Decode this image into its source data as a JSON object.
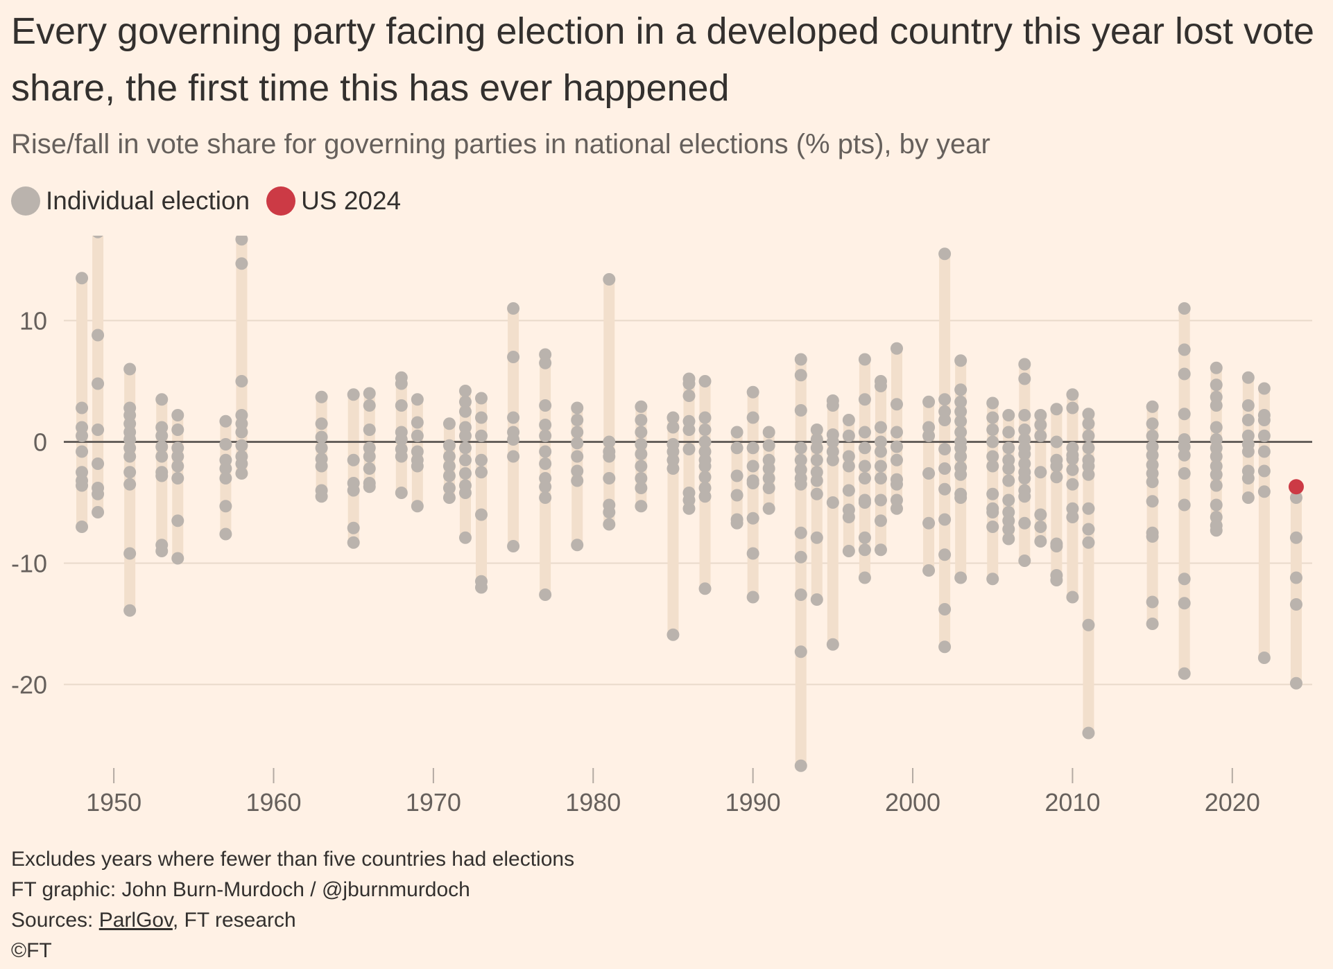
{
  "title": "Every governing party facing election in a developed country this year lost vote share, the first time this has ever happened",
  "subtitle": "Rise/fall in vote share for governing parties in national elections (% pts), by year",
  "legend": {
    "individual": {
      "label": "Individual election",
      "color": "#bab3ad"
    },
    "us": {
      "label": "US 2024",
      "color": "#cc3a45"
    }
  },
  "footer": {
    "note": "Excludes years where fewer than five countries had elections",
    "credit": "FT graphic: John Burn-Murdoch / @jburnmurdoch",
    "sources_prefix": "Sources: ",
    "sources_link": "ParlGov",
    "sources_rest": ", FT research",
    "copyright": "©FT"
  },
  "chart_data": {
    "type": "scatter",
    "xlabel": "",
    "ylabel": "",
    "xlim": [
      1947,
      2025
    ],
    "ylim": [
      -27,
      17
    ],
    "x_ticks": [
      1950,
      1960,
      1970,
      1980,
      1990,
      2000,
      2010,
      2020
    ],
    "y_ticks": [
      10,
      0,
      -10,
      -20
    ],
    "zero_line": true,
    "grid": "horizontal",
    "colors": {
      "point": "#bab3ad",
      "range_bar": "#f2dfcc",
      "highlight": "#cc3a45",
      "zero": "#66605c",
      "grid": "#e9d9ca"
    },
    "highlight": {
      "label": "US 2024",
      "year": 2024,
      "value": -3.7
    },
    "series": [
      {
        "year": 1948,
        "values": [
          13.5,
          2.8,
          1.2,
          0.5,
          -0.8,
          -2.5,
          -3.2,
          -3.6,
          -7.0
        ]
      },
      {
        "year": 1949,
        "values": [
          17.3,
          8.8,
          4.8,
          1.0,
          -1.8,
          -3.8,
          -4.3,
          -5.8
        ]
      },
      {
        "year": 1951,
        "values": [
          6.0,
          2.8,
          2.2,
          1.5,
          0.8,
          0.2,
          -0.5,
          -1.2,
          -2.5,
          -3.5,
          -9.2,
          -13.9
        ]
      },
      {
        "year": 1953,
        "values": [
          3.5,
          1.2,
          0.5,
          -0.4,
          -1.2,
          -2.5,
          -2.8,
          -8.5,
          -9.0
        ]
      },
      {
        "year": 1954,
        "values": [
          2.2,
          1.0,
          -0.5,
          -1.2,
          -2.0,
          -3.0,
          -6.5,
          -9.6
        ]
      },
      {
        "year": 1957,
        "values": [
          1.7,
          -0.2,
          -1.5,
          -2.2,
          -3.0,
          -5.3,
          -7.6
        ]
      },
      {
        "year": 1958,
        "values": [
          16.7,
          14.7,
          5.0,
          2.2,
          1.5,
          0.8,
          -0.3,
          -1.2,
          -1.8,
          -2.6
        ]
      },
      {
        "year": 1963,
        "values": [
          3.7,
          1.5,
          0.4,
          -0.5,
          -1.4,
          -2.0,
          -4.0,
          -4.5
        ]
      },
      {
        "year": 1965,
        "values": [
          3.9,
          -1.5,
          -3.4,
          -4.0,
          -7.1,
          -8.3
        ]
      },
      {
        "year": 1966,
        "values": [
          4.0,
          3.0,
          1.0,
          -0.5,
          -1.2,
          -2.2,
          -3.4,
          -3.7
        ]
      },
      {
        "year": 1968,
        "values": [
          5.3,
          4.8,
          3.0,
          0.8,
          0.2,
          -0.6,
          -1.2,
          -4.2
        ]
      },
      {
        "year": 1969,
        "values": [
          3.5,
          1.6,
          0.5,
          -0.8,
          -1.5,
          -2.0,
          -5.3
        ]
      },
      {
        "year": 1971,
        "values": [
          1.5,
          -0.3,
          -1.2,
          -2.0,
          -2.8,
          -3.8,
          -4.6
        ]
      },
      {
        "year": 1972,
        "values": [
          4.2,
          3.3,
          2.5,
          1.2,
          0.5,
          -0.5,
          -1.5,
          -2.6,
          -3.6,
          -4.2,
          -7.9
        ]
      },
      {
        "year": 1973,
        "values": [
          3.6,
          2.0,
          0.5,
          -1.5,
          -2.5,
          -6.0,
          -11.5,
          -12.0
        ]
      },
      {
        "year": 1975,
        "values": [
          11.0,
          7.0,
          2.0,
          0.8,
          0.2,
          -1.2,
          -8.6
        ]
      },
      {
        "year": 1977,
        "values": [
          7.2,
          6.5,
          3.0,
          1.4,
          0.5,
          -0.8,
          -1.8,
          -3.0,
          -3.7,
          -4.6,
          -12.6
        ]
      },
      {
        "year": 1979,
        "values": [
          2.8,
          1.8,
          0.8,
          -0.1,
          -1.2,
          -2.4,
          -3.2,
          -8.5
        ]
      },
      {
        "year": 1981,
        "values": [
          13.4,
          0.0,
          -0.8,
          -1.2,
          -3.0,
          -5.2,
          -5.8,
          -6.8
        ]
      },
      {
        "year": 1983,
        "values": [
          2.9,
          1.8,
          0.8,
          -0.2,
          -1.0,
          -2.0,
          -3.0,
          -3.8,
          -5.3
        ]
      },
      {
        "year": 1985,
        "values": [
          2.0,
          1.2,
          -0.2,
          -0.8,
          -1.5,
          -2.2,
          -15.9
        ]
      },
      {
        "year": 1986,
        "values": [
          5.2,
          4.8,
          3.8,
          1.7,
          1.0,
          -0.6,
          -4.2,
          -4.8,
          -5.5
        ]
      },
      {
        "year": 1987,
        "values": [
          5.0,
          2.0,
          1.0,
          0.0,
          -0.8,
          -1.5,
          -2.0,
          -2.9,
          -3.8,
          -4.5,
          -12.1
        ]
      },
      {
        "year": 1989,
        "values": [
          0.8,
          -0.5,
          -2.8,
          -4.4,
          -6.4,
          -6.7
        ]
      },
      {
        "year": 1990,
        "values": [
          4.1,
          2.0,
          -0.5,
          -2.0,
          -3.2,
          -3.4,
          -6.3,
          -9.2,
          -12.8
        ]
      },
      {
        "year": 1991,
        "values": [
          0.8,
          -0.3,
          -1.5,
          -2.2,
          -3.0,
          -3.8,
          -5.5
        ]
      },
      {
        "year": 1993,
        "values": [
          6.8,
          5.5,
          2.6,
          -0.5,
          -1.5,
          -2.3,
          -3.0,
          -3.5,
          -7.5,
          -9.5,
          -12.6,
          -17.3,
          -26.7
        ]
      },
      {
        "year": 1994,
        "values": [
          1.0,
          0.2,
          -0.5,
          -1.5,
          -2.5,
          -3.2,
          -4.3,
          -7.9,
          -13.0
        ]
      },
      {
        "year": 1995,
        "values": [
          3.4,
          3.0,
          0.6,
          0.0,
          -0.8,
          -1.5,
          -5.0,
          -16.7
        ]
      },
      {
        "year": 1996,
        "values": [
          1.8,
          0.5,
          -1.2,
          -2.0,
          -4.0,
          -5.6,
          -6.2,
          -9.0
        ]
      },
      {
        "year": 1997,
        "values": [
          6.8,
          3.5,
          0.8,
          -0.5,
          -2.0,
          -3.0,
          -4.8,
          -5.0,
          -7.9,
          -8.9,
          -11.2
        ]
      },
      {
        "year": 1998,
        "values": [
          5.0,
          4.6,
          1.2,
          0.0,
          -0.8,
          -2.0,
          -3.0,
          -4.8,
          -6.5,
          -8.9
        ]
      },
      {
        "year": 1999,
        "values": [
          7.7,
          3.1,
          0.8,
          -0.4,
          -1.5,
          -3.1,
          -3.5,
          -4.8,
          -5.5
        ]
      },
      {
        "year": 2001,
        "values": [
          3.3,
          1.2,
          0.5,
          -2.6,
          -6.7,
          -10.6
        ]
      },
      {
        "year": 2002,
        "values": [
          15.5,
          3.5,
          2.5,
          1.8,
          -0.6,
          -2.2,
          -3.9,
          -6.4,
          -9.3,
          -13.8,
          -16.9
        ]
      },
      {
        "year": 2003,
        "values": [
          6.7,
          4.3,
          3.3,
          2.5,
          1.7,
          0.8,
          0.0,
          -0.5,
          -1.2,
          -2.1,
          -2.7,
          -4.3,
          -4.6,
          -11.2
        ]
      },
      {
        "year": 2005,
        "values": [
          3.2,
          2.0,
          1.0,
          0.0,
          -1.2,
          -2.0,
          -4.3,
          -5.5,
          -5.8,
          -7.0,
          -11.3
        ]
      },
      {
        "year": 2006,
        "values": [
          2.2,
          0.8,
          -0.5,
          -1.5,
          -2.2,
          -3.2,
          -4.8,
          -5.8,
          -6.5,
          -7.2,
          -8.0
        ]
      },
      {
        "year": 2007,
        "values": [
          6.4,
          5.2,
          2.2,
          1.0,
          0.2,
          -0.5,
          -1.0,
          -1.8,
          -2.5,
          -3.0,
          -4.0,
          -4.5,
          -6.7,
          -9.8
        ]
      },
      {
        "year": 2008,
        "values": [
          2.2,
          1.4,
          0.5,
          -2.5,
          -6.0,
          -7.0,
          -8.2
        ]
      },
      {
        "year": 2009,
        "values": [
          2.7,
          0.0,
          -1.5,
          -2.0,
          -2.9,
          -8.4,
          -8.6,
          -11.0,
          -11.4
        ]
      },
      {
        "year": 2010,
        "values": [
          3.9,
          2.8,
          -0.5,
          -1.1,
          -1.4,
          -2.3,
          -3.5,
          -5.5,
          -6.2,
          -12.8
        ]
      },
      {
        "year": 2011,
        "values": [
          2.3,
          1.5,
          0.5,
          -0.5,
          -1.5,
          -2.0,
          -2.7,
          -5.5,
          -7.2,
          -8.3,
          -15.1,
          -24.0
        ]
      },
      {
        "year": 2015,
        "values": [
          2.9,
          1.5,
          0.5,
          -0.4,
          -1.1,
          -1.9,
          -2.6,
          -3.3,
          -4.9,
          -7.5,
          -7.8,
          -13.2,
          -15.0
        ]
      },
      {
        "year": 2017,
        "values": [
          11.0,
          7.6,
          5.6,
          2.3,
          0.2,
          -0.4,
          -1.1,
          -2.6,
          -5.2,
          -11.3,
          -13.3,
          -19.1
        ]
      },
      {
        "year": 2019,
        "values": [
          6.1,
          4.7,
          3.7,
          3.0,
          1.2,
          0.2,
          -0.5,
          -1.2,
          -2.0,
          -2.7,
          -3.6,
          -5.2,
          -6.2,
          -6.9,
          -7.3
        ]
      },
      {
        "year": 2021,
        "values": [
          5.3,
          3.0,
          1.8,
          0.5,
          -0.2,
          -0.8,
          -2.4,
          -3.0,
          -4.6
        ]
      },
      {
        "year": 2022,
        "values": [
          4.4,
          2.2,
          1.8,
          0.5,
          -0.8,
          -2.4,
          -4.1,
          -17.8
        ]
      },
      {
        "year": 2024,
        "values": [
          -3.7,
          -4.6,
          -7.9,
          -11.2,
          -13.4,
          -19.9
        ]
      }
    ]
  }
}
